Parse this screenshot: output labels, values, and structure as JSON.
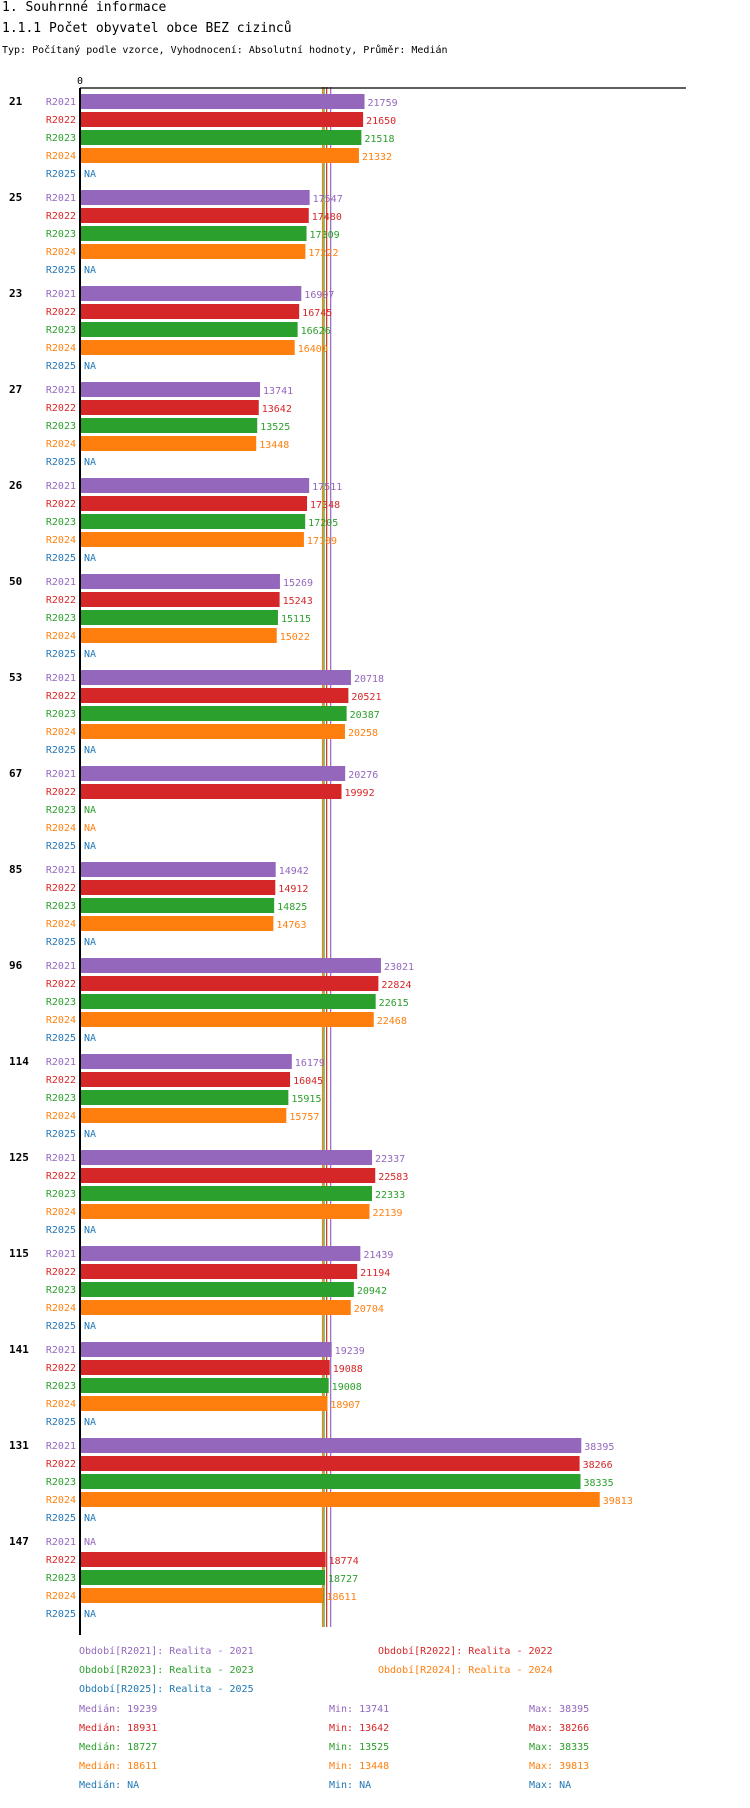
{
  "page": {
    "heading": "1. Souhrnné informace",
    "subheading": "1.1.1 Počet obyvatel obce BEZ cizinců",
    "typ_line": "Typ: Počítaný podle vzorce, Vyhodnocení: Absolutní hodnoty, Průměr: Medián"
  },
  "chart_data": {
    "type": "bar",
    "orientation": "horizontal",
    "axis_zero_label": "0",
    "xlim": [
      0,
      39813
    ],
    "na_label": "NA",
    "series": [
      {
        "key": "R2021",
        "color": "#9467bd"
      },
      {
        "key": "R2022",
        "color": "#d62728"
      },
      {
        "key": "R2023",
        "color": "#2ca02c"
      },
      {
        "key": "R2024",
        "color": "#ff7f0e"
      },
      {
        "key": "R2025",
        "color": "#1f77b4"
      }
    ],
    "groups": [
      {
        "id": "21",
        "values": [
          21759,
          21650,
          21518,
          21332,
          null
        ]
      },
      {
        "id": "25",
        "values": [
          17547,
          17480,
          17309,
          17222,
          null
        ]
      },
      {
        "id": "23",
        "values": [
          16907,
          16745,
          16626,
          16400,
          null
        ]
      },
      {
        "id": "27",
        "values": [
          13741,
          13642,
          13525,
          13448,
          null
        ]
      },
      {
        "id": "26",
        "values": [
          17511,
          17348,
          17205,
          17109,
          null
        ]
      },
      {
        "id": "50",
        "values": [
          15269,
          15243,
          15115,
          15022,
          null
        ]
      },
      {
        "id": "53",
        "values": [
          20718,
          20521,
          20387,
          20258,
          null
        ]
      },
      {
        "id": "67",
        "values": [
          20276,
          19992,
          null,
          null,
          null
        ]
      },
      {
        "id": "85",
        "values": [
          14942,
          14912,
          14825,
          14763,
          null
        ]
      },
      {
        "id": "96",
        "values": [
          23021,
          22824,
          22615,
          22468,
          null
        ]
      },
      {
        "id": "114",
        "values": [
          16179,
          16045,
          15915,
          15757,
          null
        ]
      },
      {
        "id": "125",
        "values": [
          22337,
          22583,
          22333,
          22139,
          null
        ]
      },
      {
        "id": "115",
        "values": [
          21439,
          21194,
          20942,
          20704,
          null
        ]
      },
      {
        "id": "141",
        "values": [
          19239,
          19088,
          19008,
          18907,
          null
        ]
      },
      {
        "id": "131",
        "values": [
          38395,
          38266,
          38335,
          39813,
          null
        ]
      },
      {
        "id": "147",
        "values": [
          null,
          18774,
          18727,
          18611,
          null
        ]
      }
    ],
    "medians": [
      19239,
      18931,
      18727,
      18611,
      null
    ],
    "legend": {
      "periods": [
        "Období[R2021]: Realita - 2021",
        "Období[R2022]: Realita - 2022",
        "Období[R2023]: Realita - 2023",
        "Období[R2024]: Realita - 2024",
        "Období[R2025]: Realita - 2025"
      ],
      "stats": [
        {
          "median": "Medián: 19239",
          "min": "Min: 13741",
          "max": "Max: 38395"
        },
        {
          "median": "Medián: 18931",
          "min": "Min: 13642",
          "max": "Max: 38266"
        },
        {
          "median": "Medián: 18727",
          "min": "Min: 13525",
          "max": "Max: 38335"
        },
        {
          "median": "Medián: 18611",
          "min": "Min: 13448",
          "max": "Max: 39813"
        },
        {
          "median": "Medián: NA",
          "min": "Min: NA",
          "max": "Max: NA"
        }
      ]
    }
  }
}
